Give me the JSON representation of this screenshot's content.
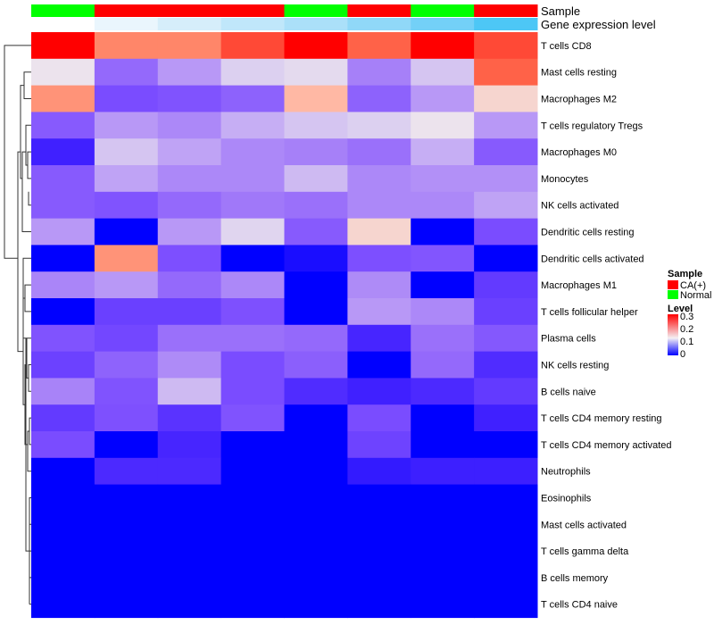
{
  "chart_data": {
    "type": "heatmap",
    "title": "",
    "rows": [
      "T cells CD8",
      "Mast cells resting",
      "Macrophages M2",
      "T cells regulatory  Tregs",
      "Macrophages M0",
      "Monocytes",
      "NK cells activated",
      "Dendritic cells resting",
      "Dendritic cells activated",
      "Macrophages M1",
      "T cells follicular helper",
      "Plasma cells",
      "NK cells resting",
      "B cells naive",
      "T cells CD4 memory resting",
      "T cells CD4 memory activated",
      "Neutrophils",
      "Eosinophils",
      "Mast cells activated",
      "T cells gamma delta",
      "B cells memory",
      "T cells CD4 naive"
    ],
    "column_annotations": {
      "sample_label": "Sample",
      "sample": [
        "Normal",
        "CA(+)",
        "CA(+)",
        "CA(+)",
        "Normal",
        "CA(+)",
        "Normal",
        "CA(+)"
      ],
      "gene_expression_label": "Gene expression level",
      "gene_expression_colors": [
        "#ffffff",
        "#eaf6fd",
        "#d6eefa",
        "#c0e7fa",
        "#abe0f9",
        "#90d8f8",
        "#73d0f7",
        "#4dc7f6"
      ]
    },
    "values": [
      [
        0.3,
        0.24,
        0.24,
        0.27,
        0.3,
        0.26,
        0.3,
        0.27
      ],
      [
        0.145,
        0.07,
        0.1,
        0.125,
        0.135,
        0.085,
        0.12,
        0.26
      ],
      [
        0.23,
        0.05,
        0.055,
        0.065,
        0.2,
        0.065,
        0.1,
        0.17
      ],
      [
        0.06,
        0.1,
        0.09,
        0.11,
        0.12,
        0.125,
        0.145,
        0.1
      ],
      [
        0.025,
        0.12,
        0.105,
        0.09,
        0.085,
        0.075,
        0.11,
        0.06
      ],
      [
        0.06,
        0.105,
        0.09,
        0.09,
        0.115,
        0.09,
        0.095,
        0.095
      ],
      [
        0.06,
        0.055,
        0.07,
        0.08,
        0.075,
        0.09,
        0.09,
        0.105
      ],
      [
        0.1,
        0.0,
        0.1,
        0.13,
        0.06,
        0.17,
        0.0,
        0.05
      ],
      [
        0.0,
        0.23,
        0.052,
        0.0,
        0.01,
        0.052,
        0.056,
        0.0
      ],
      [
        0.088,
        0.1,
        0.07,
        0.09,
        0.0,
        0.092,
        0.0,
        0.04
      ],
      [
        0.0,
        0.043,
        0.043,
        0.053,
        0.0,
        0.1,
        0.09,
        0.043
      ],
      [
        0.055,
        0.047,
        0.075,
        0.075,
        0.07,
        0.028,
        0.075,
        0.058
      ],
      [
        0.044,
        0.066,
        0.092,
        0.05,
        0.063,
        0.0,
        0.07,
        0.032
      ],
      [
        0.087,
        0.055,
        0.115,
        0.05,
        0.032,
        0.025,
        0.03,
        0.04
      ],
      [
        0.04,
        0.053,
        0.036,
        0.055,
        0.0,
        0.05,
        0.0,
        0.025
      ],
      [
        0.05,
        0.0,
        0.028,
        0.0,
        0.0,
        0.045,
        0.0,
        0.0
      ],
      [
        0.0,
        0.03,
        0.03,
        0.0,
        0.0,
        0.02,
        0.024,
        0.024
      ],
      [
        0,
        0,
        0,
        0,
        0,
        0,
        0,
        0
      ],
      [
        0,
        0,
        0,
        0,
        0,
        0,
        0,
        0
      ],
      [
        0,
        0,
        0,
        0,
        0,
        0,
        0,
        0
      ],
      [
        0,
        0,
        0,
        0,
        0,
        0,
        0,
        0
      ],
      [
        0,
        0,
        0,
        0,
        0,
        0,
        0,
        0
      ]
    ],
    "color_scale": {
      "range": [
        0,
        0.3
      ],
      "low": "#0000ff",
      "mid": "#ffffff",
      "high": "#ff0000"
    },
    "legend": {
      "sample_title": "Sample",
      "sample_entries": [
        {
          "label": "CA(+)",
          "color": "#ff0000"
        },
        {
          "label": "Normal",
          "color": "#00ff00"
        }
      ],
      "level_title": "Level",
      "level_ticks": [
        "0.3",
        "0.2",
        "0.1",
        "0"
      ],
      "placement": "right"
    }
  }
}
